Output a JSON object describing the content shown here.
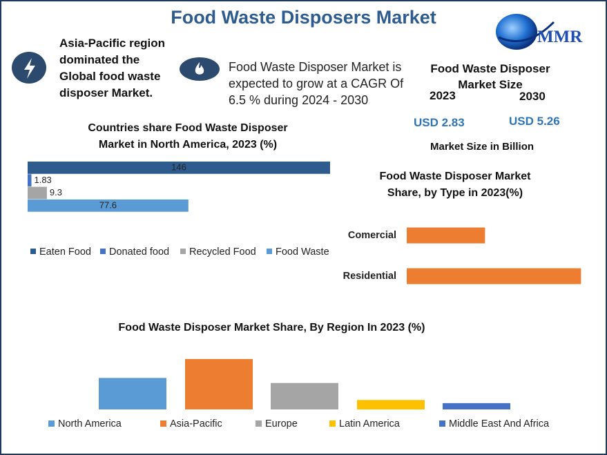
{
  "title": "Food Waste Disposers Market",
  "logo": "MMR",
  "callouts": [
    "Asia-Pacific region dominated the Global food waste disposer Market.",
    "Food Waste Disposer Market is expected to grow at a CAGR Of 6.5 % during 2024 - 2030"
  ],
  "market_size": {
    "title": "Food Waste Disposer Market Size",
    "years": [
      "2023",
      "2030"
    ],
    "values": [
      "USD 2.83",
      "USD 5.26"
    ],
    "note": "Market Size in Billion"
  },
  "chart_data": [
    {
      "type": "bar",
      "orientation": "horizontal",
      "title": "Countries share Food Waste Disposer Market in North America, 2023 (%)",
      "series": [
        {
          "name": "Eaten Food",
          "color": "#2e5c8e",
          "values": [
            146
          ]
        },
        {
          "name": "Donated food",
          "color": "#4472c4",
          "values": [
            1.83
          ]
        },
        {
          "name": "Recycled Food",
          "color": "#a5a5a5",
          "values": [
            9.3
          ]
        },
        {
          "name": "Food Waste",
          "color": "#5b9bd5",
          "values": [
            77.6
          ]
        }
      ],
      "xlim": [
        0,
        146
      ]
    },
    {
      "type": "bar",
      "orientation": "horizontal",
      "title": "Food Waste Disposer Market Share, by Type in 2023(%)",
      "categories": [
        "Comercial",
        "Residential"
      ],
      "values": [
        31,
        69
      ],
      "color": "#ed7d31",
      "xlim": [
        0,
        70
      ]
    },
    {
      "type": "bar",
      "title": "Food Waste Disposer Market Share, By Region In 2023 (%)",
      "categories": [
        "North America",
        "Asia-Pacific",
        "Europe",
        "Latin America",
        "Middle East And Africa"
      ],
      "values": [
        25,
        40,
        21,
        7.5,
        5
      ],
      "colors": [
        "#5b9bd5",
        "#ed7d31",
        "#a5a5a5",
        "#ffc000",
        "#4472c4"
      ],
      "ylim": [
        0,
        40
      ]
    }
  ]
}
